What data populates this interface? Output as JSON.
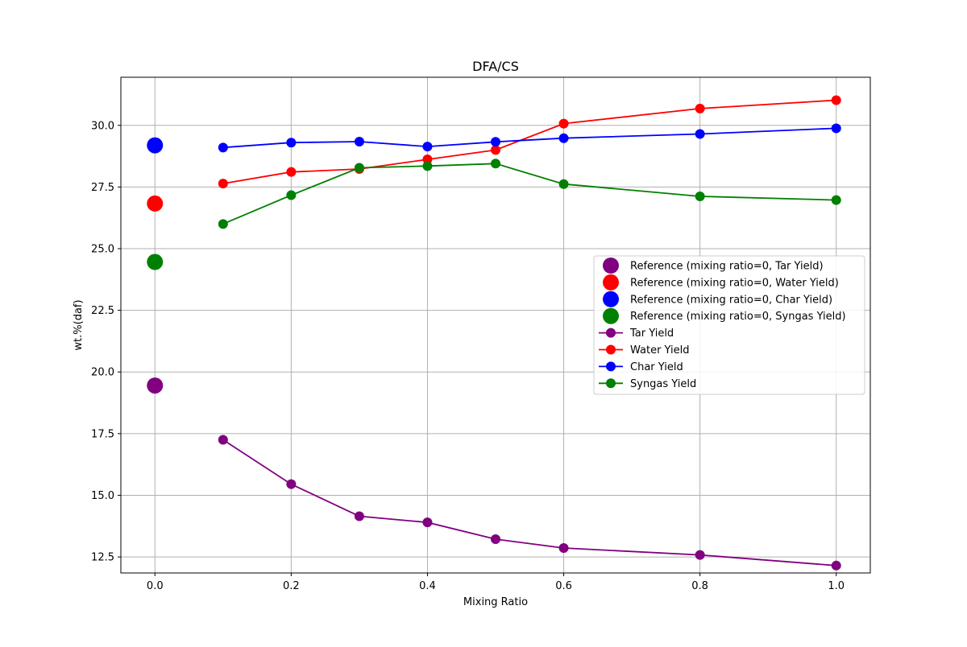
{
  "chart_data": {
    "type": "line",
    "title": "DFA/CS",
    "xlabel": "Mixing Ratio",
    "ylabel": "wt.%(daf)",
    "xlim": [
      -0.05,
      1.05
    ],
    "ylim": [
      11.85,
      31.95
    ],
    "xticks": [
      0.0,
      0.2,
      0.4,
      0.6,
      0.8,
      1.0
    ],
    "xtick_labels": [
      "0.0",
      "0.2",
      "0.4",
      "0.6",
      "0.8",
      "1.0"
    ],
    "yticks": [
      12.5,
      15.0,
      17.5,
      20.0,
      22.5,
      25.0,
      27.5,
      30.0
    ],
    "ytick_labels": [
      "12.5",
      "15.0",
      "17.5",
      "20.0",
      "22.5",
      "25.0",
      "27.5",
      "30.0"
    ],
    "grid": true,
    "legend_position": "center-right",
    "reference_points": [
      {
        "name": "Reference (mixing ratio=0, Tar Yield)",
        "color": "#800080",
        "x": 0.0,
        "y": 19.45
      },
      {
        "name": "Reference (mixing ratio=0, Water Yield)",
        "color": "#ff0000",
        "x": 0.0,
        "y": 26.83
      },
      {
        "name": "Reference (mixing ratio=0, Char Yield)",
        "color": "#0000ff",
        "x": 0.0,
        "y": 29.19
      },
      {
        "name": "Reference (mixing ratio=0, Syngas Yield)",
        "color": "#008000",
        "x": 0.0,
        "y": 24.46
      }
    ],
    "x": [
      0.1,
      0.2,
      0.3,
      0.4,
      0.5,
      0.6,
      0.8,
      1.0
    ],
    "series": [
      {
        "name": "Tar Yield",
        "color": "#800080",
        "values": [
          17.25,
          15.45,
          14.15,
          13.9,
          13.22,
          12.86,
          12.58,
          12.15
        ]
      },
      {
        "name": "Water Yield",
        "color": "#ff0000",
        "values": [
          27.64,
          28.11,
          28.23,
          28.62,
          29.0,
          30.07,
          30.68,
          31.02
        ]
      },
      {
        "name": "Char Yield",
        "color": "#0000ff",
        "values": [
          29.1,
          29.3,
          29.34,
          29.14,
          29.33,
          29.48,
          29.65,
          29.88
        ]
      },
      {
        "name": "Syngas Yield",
        "color": "#008000",
        "values": [
          26.0,
          27.17,
          28.28,
          28.35,
          28.45,
          27.62,
          27.12,
          26.97
        ]
      }
    ]
  }
}
